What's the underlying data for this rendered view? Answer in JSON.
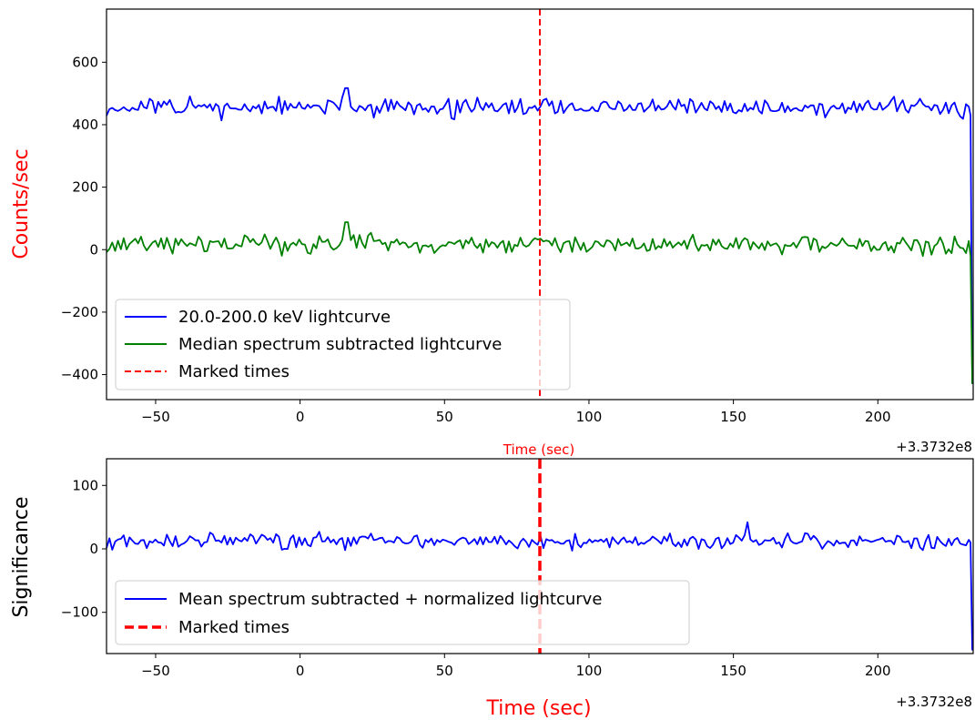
{
  "chart_data": [
    {
      "type": "line",
      "xlabel": "Time (sec)",
      "ylabel": "Counts/sec",
      "x_offset_label": "+3.3732e8",
      "xlim": [
        -67,
        233
      ],
      "ylim": [
        -480,
        770
      ],
      "x_ticks": [
        -50,
        0,
        50,
        100,
        150,
        200
      ],
      "y_ticks": [
        -400,
        -200,
        0,
        200,
        400,
        600
      ],
      "grid": false,
      "legend_position": "lower-left",
      "colors": {
        "lightcurve": "#0000ff",
        "median": "#008000",
        "marked": "#ff0000"
      },
      "series": [
        {
          "name": "20.0-200.0 keV lightcurve",
          "baseline": 455,
          "amplitude": 22,
          "end_value": 430,
          "drop_value": -430,
          "peak_x": 16,
          "peak_value": 517
        },
        {
          "name": "Median spectrum subtracted lightcurve",
          "baseline": 18,
          "amplitude": 22,
          "end_value": -20,
          "drop_value": -430,
          "peak_x": 16,
          "peak_value": 88
        }
      ],
      "marked_times": {
        "name": "Marked times",
        "x": [
          83
        ]
      }
    },
    {
      "type": "line",
      "xlabel": "Time (sec)",
      "ylabel": "Significance",
      "x_offset_label": "+3.3732e8",
      "xlim": [
        -67,
        233
      ],
      "ylim": [
        -165,
        142
      ],
      "x_ticks": [
        -50,
        0,
        50,
        100,
        150,
        200
      ],
      "y_ticks": [
        -100,
        0,
        100
      ],
      "grid": false,
      "legend_position": "lower-left",
      "colors": {
        "lightcurve": "#0000ff",
        "marked": "#ff0000"
      },
      "series": [
        {
          "name": "Mean spectrum subtracted + normalized lightcurve",
          "baseline": 12,
          "amplitude": 9,
          "end_value": 10,
          "drop_value": -160,
          "peak_x": 155,
          "peak_value": 42
        }
      ],
      "marked_times": {
        "name": "Marked times",
        "x": [
          83
        ]
      }
    }
  ]
}
